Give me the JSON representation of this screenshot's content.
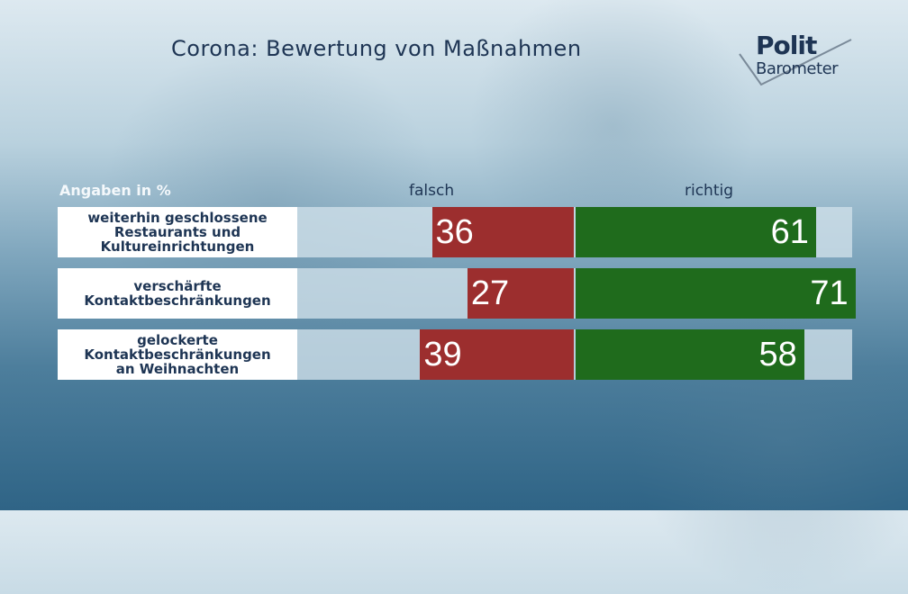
{
  "title": "Corona: Bewertung von Maßnahmen",
  "logo": {
    "line1": "Polit",
    "line2": "Barometer"
  },
  "colors": {
    "falsch": "#9c2e2e",
    "richtig": "#1f6b1c",
    "text": "#1e3554"
  },
  "chart_data": {
    "type": "bar",
    "title": "Corona: Bewertung von Maßnahmen",
    "units_label": "Angaben in %",
    "categories": [
      "weiterhin geschlossene\nRestaurants und\nKultureinrichtungen",
      "verschärfte\nKontaktbeschränkungen",
      "gelockerte\nKontaktbeschränkungen\nan Weihnachten"
    ],
    "series": [
      {
        "name": "falsch",
        "values": [
          36,
          27,
          39
        ]
      },
      {
        "name": "richtig",
        "values": [
          61,
          71,
          58
        ]
      }
    ],
    "xlim": [
      -60,
      71
    ]
  }
}
